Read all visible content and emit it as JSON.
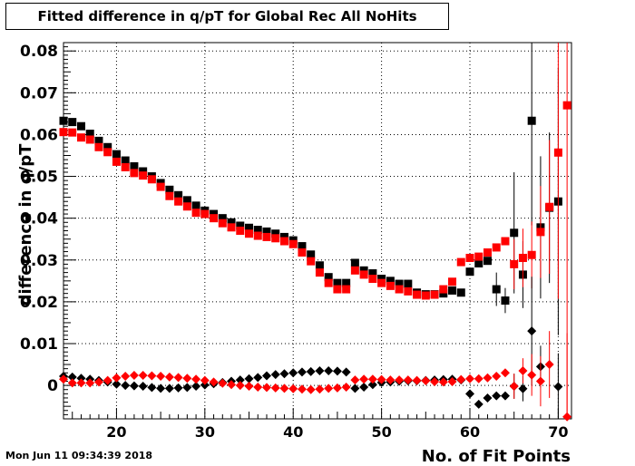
{
  "page": {
    "date_stamp": "Mon Jun 11 09:34:39 2018"
  },
  "chart_data": {
    "type": "scatter",
    "title": "Fitted difference in q/pT for Global Rec All NoHits",
    "xlabel": "No. of Fit Points",
    "ylabel": "difference in q/pT",
    "xlim": [
      14,
      71.5
    ],
    "ylim": [
      -0.008,
      0.082
    ],
    "xticks": [
      20,
      30,
      40,
      50,
      60,
      70
    ],
    "yticks": [
      0,
      0.01,
      0.02,
      0.03,
      0.04,
      0.05,
      0.06,
      0.07,
      0.08
    ],
    "ytick_labels": [
      "0",
      "0.01",
      "0.02",
      "0.03",
      "0.04",
      "0.05",
      "0.06",
      "0.07",
      "0.08"
    ],
    "grid": true,
    "colors": {
      "black": "#000000",
      "red": "#ff0000"
    },
    "series": [
      {
        "marker": "square",
        "color": "#000000",
        "points": [
          {
            "x": 14,
            "y": 0.0633
          },
          {
            "x": 15,
            "y": 0.063
          },
          {
            "x": 16,
            "y": 0.062
          },
          {
            "x": 17,
            "y": 0.0602
          },
          {
            "x": 18,
            "y": 0.0585
          },
          {
            "x": 19,
            "y": 0.057
          },
          {
            "x": 20,
            "y": 0.0553
          },
          {
            "x": 21,
            "y": 0.0538
          },
          {
            "x": 22,
            "y": 0.0524
          },
          {
            "x": 23,
            "y": 0.0512
          },
          {
            "x": 24,
            "y": 0.05
          },
          {
            "x": 25,
            "y": 0.0484
          },
          {
            "x": 26,
            "y": 0.0468
          },
          {
            "x": 27,
            "y": 0.0455
          },
          {
            "x": 28,
            "y": 0.0443
          },
          {
            "x": 29,
            "y": 0.043
          },
          {
            "x": 30,
            "y": 0.0418
          },
          {
            "x": 31,
            "y": 0.041
          },
          {
            "x": 32,
            "y": 0.04
          },
          {
            "x": 33,
            "y": 0.039
          },
          {
            "x": 34,
            "y": 0.0382
          },
          {
            "x": 35,
            "y": 0.0377
          },
          {
            "x": 36,
            "y": 0.0372
          },
          {
            "x": 37,
            "y": 0.0368
          },
          {
            "x": 38,
            "y": 0.0363
          },
          {
            "x": 39,
            "y": 0.0355
          },
          {
            "x": 40,
            "y": 0.0347
          },
          {
            "x": 41,
            "y": 0.0333
          },
          {
            "x": 42,
            "y": 0.0313
          },
          {
            "x": 43,
            "y": 0.0287
          },
          {
            "x": 44,
            "y": 0.0259
          },
          {
            "x": 45,
            "y": 0.0245
          },
          {
            "x": 46,
            "y": 0.0245
          },
          {
            "x": 47,
            "y": 0.0293
          },
          {
            "x": 48,
            "y": 0.0275
          },
          {
            "x": 49,
            "y": 0.0268
          },
          {
            "x": 50,
            "y": 0.0255
          },
          {
            "x": 51,
            "y": 0.025
          },
          {
            "x": 52,
            "y": 0.0243
          },
          {
            "x": 53,
            "y": 0.0243
          },
          {
            "x": 54,
            "y": 0.0222
          },
          {
            "x": 55,
            "y": 0.0218
          },
          {
            "x": 56,
            "y": 0.0218
          },
          {
            "x": 57,
            "y": 0.022
          },
          {
            "x": 58,
            "y": 0.0227
          },
          {
            "x": 59,
            "y": 0.0222
          },
          {
            "x": 60,
            "y": 0.0272
          },
          {
            "x": 61,
            "y": 0.0292
          },
          {
            "x": 62,
            "y": 0.0298
          },
          {
            "x": 63,
            "y": 0.023,
            "err": 0.004
          },
          {
            "x": 64,
            "y": 0.0203,
            "err": 0.003
          },
          {
            "x": 65,
            "y": 0.0365,
            "err": 0.0145
          },
          {
            "x": 66,
            "y": 0.0265,
            "err": 0.008
          },
          {
            "x": 67,
            "y": 0.0633,
            "err": 0.025
          },
          {
            "x": 68,
            "y": 0.0378,
            "err": 0.017
          },
          {
            "x": 69,
            "y": 0.0425,
            "err": 0.018
          },
          {
            "x": 70,
            "y": 0.044,
            "err": 0.032
          }
        ]
      },
      {
        "marker": "square",
        "color": "#ff0000",
        "points": [
          {
            "x": 14,
            "y": 0.0606
          },
          {
            "x": 15,
            "y": 0.0605
          },
          {
            "x": 16,
            "y": 0.0593
          },
          {
            "x": 17,
            "y": 0.0588
          },
          {
            "x": 18,
            "y": 0.057
          },
          {
            "x": 19,
            "y": 0.0558
          },
          {
            "x": 20,
            "y": 0.0535
          },
          {
            "x": 21,
            "y": 0.0522
          },
          {
            "x": 22,
            "y": 0.0508
          },
          {
            "x": 23,
            "y": 0.0502
          },
          {
            "x": 24,
            "y": 0.0493
          },
          {
            "x": 25,
            "y": 0.0475
          },
          {
            "x": 26,
            "y": 0.0453
          },
          {
            "x": 27,
            "y": 0.044
          },
          {
            "x": 28,
            "y": 0.0428
          },
          {
            "x": 29,
            "y": 0.0413
          },
          {
            "x": 30,
            "y": 0.041
          },
          {
            "x": 31,
            "y": 0.04
          },
          {
            "x": 32,
            "y": 0.0388
          },
          {
            "x": 33,
            "y": 0.0378
          },
          {
            "x": 34,
            "y": 0.037
          },
          {
            "x": 35,
            "y": 0.0363
          },
          {
            "x": 36,
            "y": 0.0358
          },
          {
            "x": 37,
            "y": 0.0355
          },
          {
            "x": 38,
            "y": 0.0352
          },
          {
            "x": 39,
            "y": 0.0345
          },
          {
            "x": 40,
            "y": 0.0338
          },
          {
            "x": 41,
            "y": 0.0318
          },
          {
            "x": 42,
            "y": 0.0297
          },
          {
            "x": 43,
            "y": 0.027
          },
          {
            "x": 44,
            "y": 0.0245
          },
          {
            "x": 45,
            "y": 0.023
          },
          {
            "x": 46,
            "y": 0.023
          },
          {
            "x": 47,
            "y": 0.0275
          },
          {
            "x": 48,
            "y": 0.0265
          },
          {
            "x": 49,
            "y": 0.0255
          },
          {
            "x": 50,
            "y": 0.0245
          },
          {
            "x": 51,
            "y": 0.0238
          },
          {
            "x": 52,
            "y": 0.023
          },
          {
            "x": 53,
            "y": 0.0225
          },
          {
            "x": 54,
            "y": 0.0217
          },
          {
            "x": 55,
            "y": 0.0215
          },
          {
            "x": 56,
            "y": 0.0217
          },
          {
            "x": 57,
            "y": 0.023
          },
          {
            "x": 58,
            "y": 0.0248
          },
          {
            "x": 59,
            "y": 0.0295
          },
          {
            "x": 60,
            "y": 0.0305
          },
          {
            "x": 61,
            "y": 0.0308
          },
          {
            "x": 62,
            "y": 0.0318
          },
          {
            "x": 63,
            "y": 0.033
          },
          {
            "x": 64,
            "y": 0.0345
          },
          {
            "x": 65,
            "y": 0.029,
            "err": 0.006
          },
          {
            "x": 66,
            "y": 0.0305,
            "err": 0.007
          },
          {
            "x": 67,
            "y": 0.0312,
            "err": 0.008
          },
          {
            "x": 68,
            "y": 0.0367,
            "err": 0.011
          },
          {
            "x": 69,
            "y": 0.0427,
            "err": 0.016
          },
          {
            "x": 70,
            "y": 0.0557,
            "err": 0.035
          },
          {
            "x": 71,
            "y": 0.067,
            "err": 0.08
          }
        ]
      },
      {
        "marker": "diamond",
        "color": "#000000",
        "points": [
          {
            "x": 14,
            "y": 0.0022
          },
          {
            "x": 15,
            "y": 0.002
          },
          {
            "x": 16,
            "y": 0.0017
          },
          {
            "x": 17,
            "y": 0.0015
          },
          {
            "x": 18,
            "y": 0.0012
          },
          {
            "x": 19,
            "y": 0.0008
          },
          {
            "x": 20,
            "y": 0.0003
          },
          {
            "x": 21,
            "y": 0.0
          },
          {
            "x": 22,
            "y": -0.0001
          },
          {
            "x": 23,
            "y": -0.0002
          },
          {
            "x": 24,
            "y": -0.0005
          },
          {
            "x": 25,
            "y": -0.0007
          },
          {
            "x": 26,
            "y": -0.0007
          },
          {
            "x": 27,
            "y": -0.0006
          },
          {
            "x": 28,
            "y": -0.0005
          },
          {
            "x": 29,
            "y": -0.0002
          },
          {
            "x": 30,
            "y": 0.0001
          },
          {
            "x": 31,
            "y": 0.0004
          },
          {
            "x": 32,
            "y": 0.0007
          },
          {
            "x": 33,
            "y": 0.001
          },
          {
            "x": 34,
            "y": 0.0013
          },
          {
            "x": 35,
            "y": 0.0016
          },
          {
            "x": 36,
            "y": 0.0019
          },
          {
            "x": 37,
            "y": 0.0023
          },
          {
            "x": 38,
            "y": 0.0026
          },
          {
            "x": 39,
            "y": 0.0028
          },
          {
            "x": 40,
            "y": 0.003
          },
          {
            "x": 41,
            "y": 0.0032
          },
          {
            "x": 42,
            "y": 0.0033
          },
          {
            "x": 43,
            "y": 0.0035
          },
          {
            "x": 44,
            "y": 0.0035
          },
          {
            "x": 45,
            "y": 0.0034
          },
          {
            "x": 46,
            "y": 0.0032
          },
          {
            "x": 47,
            "y": -0.0007
          },
          {
            "x": 48,
            "y": -0.0004
          },
          {
            "x": 49,
            "y": 0.0002
          },
          {
            "x": 50,
            "y": 0.0007
          },
          {
            "x": 51,
            "y": 0.0008
          },
          {
            "x": 52,
            "y": 0.001
          },
          {
            "x": 53,
            "y": 0.0011
          },
          {
            "x": 54,
            "y": 0.0011
          },
          {
            "x": 55,
            "y": 0.0012
          },
          {
            "x": 56,
            "y": 0.0013
          },
          {
            "x": 57,
            "y": 0.0014
          },
          {
            "x": 58,
            "y": 0.0015
          },
          {
            "x": 59,
            "y": 0.0013
          },
          {
            "x": 60,
            "y": -0.002
          },
          {
            "x": 61,
            "y": -0.0045
          },
          {
            "x": 62,
            "y": -0.003
          },
          {
            "x": 63,
            "y": -0.0025
          },
          {
            "x": 64,
            "y": -0.0025
          },
          {
            "x": 65,
            "y": -0.0002,
            "err": 0.003
          },
          {
            "x": 66,
            "y": -0.0008,
            "err": 0.003
          },
          {
            "x": 67,
            "y": 0.013,
            "err": 0.013
          },
          {
            "x": 68,
            "y": 0.0045,
            "err": 0.005
          },
          {
            "x": 70,
            "y": -0.0003,
            "err": 0.008
          }
        ]
      },
      {
        "marker": "diamond",
        "color": "#ff0000",
        "points": [
          {
            "x": 14,
            "y": 0.0015
          },
          {
            "x": 15,
            "y": 0.0006
          },
          {
            "x": 16,
            "y": 0.0006
          },
          {
            "x": 17,
            "y": 0.0006
          },
          {
            "x": 18,
            "y": 0.0008
          },
          {
            "x": 19,
            "y": 0.0012
          },
          {
            "x": 20,
            "y": 0.0018
          },
          {
            "x": 21,
            "y": 0.0022
          },
          {
            "x": 22,
            "y": 0.0024
          },
          {
            "x": 23,
            "y": 0.0024
          },
          {
            "x": 24,
            "y": 0.0023
          },
          {
            "x": 25,
            "y": 0.0022
          },
          {
            "x": 26,
            "y": 0.002
          },
          {
            "x": 27,
            "y": 0.0019
          },
          {
            "x": 28,
            "y": 0.0017
          },
          {
            "x": 29,
            "y": 0.0015
          },
          {
            "x": 30,
            "y": 0.0012
          },
          {
            "x": 31,
            "y": 0.0008
          },
          {
            "x": 32,
            "y": 0.0005
          },
          {
            "x": 33,
            "y": 0.0002
          },
          {
            "x": 34,
            "y": 0.0
          },
          {
            "x": 35,
            "y": -0.0002
          },
          {
            "x": 36,
            "y": -0.0004
          },
          {
            "x": 37,
            "y": -0.0005
          },
          {
            "x": 38,
            "y": -0.0006
          },
          {
            "x": 39,
            "y": -0.0007
          },
          {
            "x": 40,
            "y": -0.0008
          },
          {
            "x": 41,
            "y": -0.0009
          },
          {
            "x": 42,
            "y": -0.001
          },
          {
            "x": 43,
            "y": -0.0009
          },
          {
            "x": 44,
            "y": -0.0007
          },
          {
            "x": 45,
            "y": -0.0006
          },
          {
            "x": 46,
            "y": -0.0004
          },
          {
            "x": 47,
            "y": 0.0013
          },
          {
            "x": 48,
            "y": 0.0015
          },
          {
            "x": 49,
            "y": 0.0015
          },
          {
            "x": 50,
            "y": 0.0014
          },
          {
            "x": 51,
            "y": 0.0013
          },
          {
            "x": 52,
            "y": 0.0013
          },
          {
            "x": 53,
            "y": 0.0013
          },
          {
            "x": 54,
            "y": 0.0012
          },
          {
            "x": 55,
            "y": 0.0011
          },
          {
            "x": 56,
            "y": 0.0009
          },
          {
            "x": 57,
            "y": 0.0008
          },
          {
            "x": 58,
            "y": 0.0009
          },
          {
            "x": 59,
            "y": 0.0014
          },
          {
            "x": 60,
            "y": 0.0016
          },
          {
            "x": 61,
            "y": 0.0016
          },
          {
            "x": 62,
            "y": 0.0018
          },
          {
            "x": 63,
            "y": 0.0022
          },
          {
            "x": 64,
            "y": 0.003
          },
          {
            "x": 65,
            "y": -0.0002,
            "err": 0.003
          },
          {
            "x": 66,
            "y": 0.0035,
            "err": 0.003
          },
          {
            "x": 67,
            "y": 0.0025,
            "err": 0.005
          },
          {
            "x": 68,
            "y": 0.001,
            "err": 0.006
          },
          {
            "x": 69,
            "y": 0.005,
            "err": 0.008
          },
          {
            "x": 71,
            "y": -0.0075,
            "err": 0.02
          }
        ]
      }
    ]
  }
}
